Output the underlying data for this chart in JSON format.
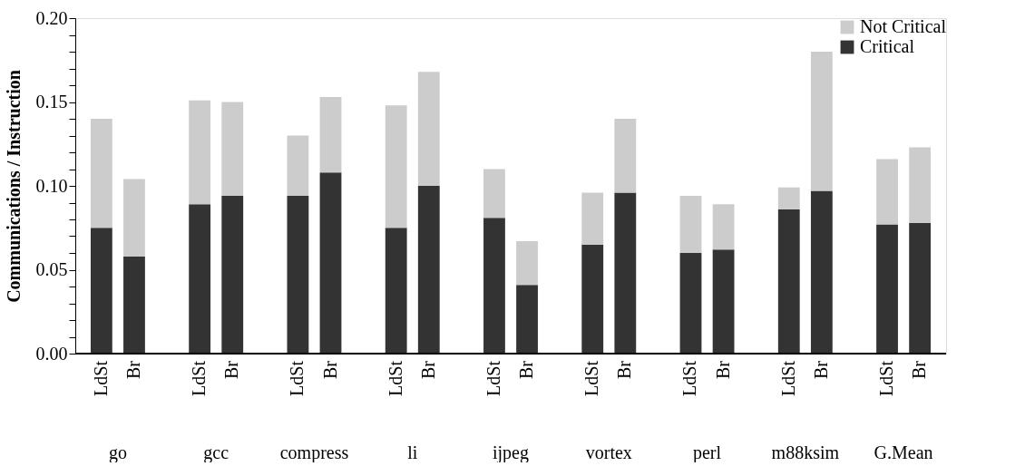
{
  "chart_data": {
    "type": "bar",
    "stacked": true,
    "ylabel": "Communications / Instruction",
    "categories": [
      "LdSt",
      "Br",
      "LdSt",
      "Br",
      "LdSt",
      "Br",
      "LdSt",
      "Br",
      "LdSt",
      "Br",
      "LdSt",
      "Br",
      "LdSt",
      "Br",
      "LdSt",
      "Br",
      "LdSt",
      "Br"
    ],
    "annotations": [
      "go",
      "gcc",
      "compress",
      "li",
      "ijpeg",
      "vortex",
      "perl",
      "m88ksim",
      "G.Mean"
    ],
    "series": [
      {
        "name": "Critical",
        "color": "#333333",
        "values": [
          0.075,
          0.058,
          0.089,
          0.094,
          0.094,
          0.108,
          0.075,
          0.1,
          0.081,
          0.041,
          0.065,
          0.096,
          0.06,
          0.062,
          0.086,
          0.097,
          0.077,
          0.078
        ]
      },
      {
        "name": "Not Critical",
        "color": "#cccccc",
        "values": [
          0.065,
          0.046,
          0.062,
          0.056,
          0.036,
          0.045,
          0.073,
          0.068,
          0.029,
          0.026,
          0.031,
          0.044,
          0.034,
          0.027,
          0.013,
          0.083,
          0.039,
          0.045
        ]
      }
    ],
    "ylim": [
      0,
      0.2
    ],
    "yticks": [
      {
        "value": 0,
        "label": "0.00"
      },
      {
        "value": 0.01,
        "label": null
      },
      {
        "value": 0.02,
        "label": null
      },
      {
        "value": 0.03,
        "label": null
      },
      {
        "value": 0.04,
        "label": null
      },
      {
        "value": 0.05,
        "label": "0.05"
      },
      {
        "value": 0.06,
        "label": null
      },
      {
        "value": 0.07,
        "label": null
      },
      {
        "value": 0.08,
        "label": null
      },
      {
        "value": 0.09,
        "label": null
      },
      {
        "value": 0.1,
        "label": "0.10"
      },
      {
        "value": 0.11,
        "label": null
      },
      {
        "value": 0.12,
        "label": null
      },
      {
        "value": 0.13,
        "label": null
      },
      {
        "value": 0.14,
        "label": null
      },
      {
        "value": 0.15,
        "label": "0.15"
      },
      {
        "value": 0.16,
        "label": null
      },
      {
        "value": 0.17,
        "label": null
      },
      {
        "value": 0.18,
        "label": null
      },
      {
        "value": 0.19,
        "label": null
      },
      {
        "value": 0.2,
        "label": "0.20"
      }
    ],
    "legend": "top right",
    "grid": false
  }
}
